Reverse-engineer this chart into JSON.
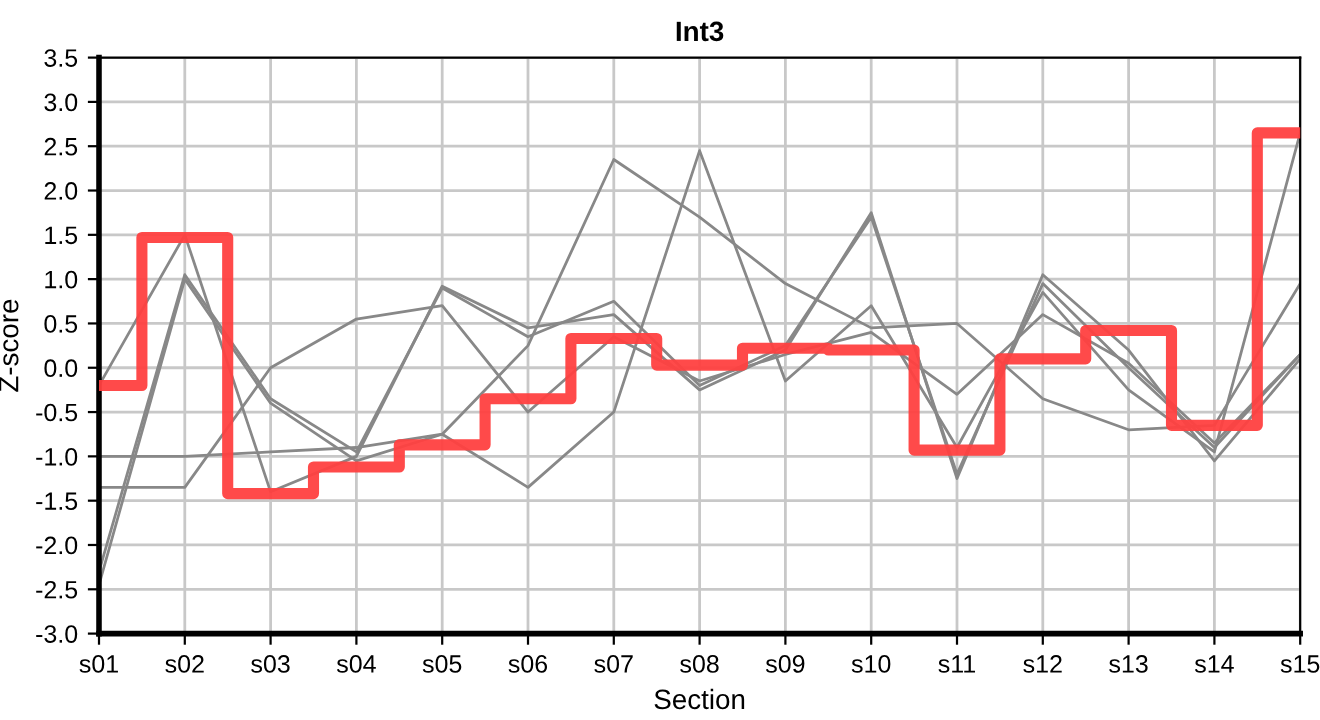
{
  "chart_data": {
    "type": "line",
    "title": "Int3",
    "xlabel": "Section",
    "ylabel": "Z-score",
    "categories": [
      "s01",
      "s02",
      "s03",
      "s04",
      "s05",
      "s06",
      "s07",
      "s08",
      "s09",
      "s10",
      "s11",
      "s12",
      "s13",
      "s14",
      "s15"
    ],
    "series": [
      {
        "color": "#888888",
        "values": [
          -0.2,
          1.5,
          -1.4,
          -1.0,
          0.92,
          0.45,
          0.6,
          -0.25,
          0.2,
          1.75,
          -1.25,
          1.05,
          0.2,
          -1.05,
          0.1
        ]
      },
      {
        "color": "#888888",
        "values": [
          -2.3,
          1.05,
          -0.35,
          -0.95,
          0.9,
          0.35,
          0.75,
          -0.2,
          0.25,
          1.7,
          -1.2,
          0.95,
          0.0,
          -0.9,
          0.15
        ]
      },
      {
        "color": "#888888",
        "values": [
          -2.45,
          1.0,
          -0.4,
          -1.05,
          -0.75,
          -1.35,
          -0.5,
          2.45,
          -0.15,
          0.7,
          -0.9,
          0.85,
          -0.25,
          -0.95,
          2.65
        ]
      },
      {
        "color": "#888888",
        "values": [
          -1.0,
          -1.0,
          -0.95,
          -0.9,
          -0.75,
          0.25,
          2.35,
          1.7,
          0.95,
          0.45,
          0.5,
          -0.35,
          -0.7,
          -0.65,
          0.95
        ]
      },
      {
        "color": "#888888",
        "values": [
          -1.35,
          -1.35,
          0.0,
          0.55,
          0.7,
          -0.5,
          0.35,
          -0.15,
          0.15,
          0.4,
          -0.3,
          0.6,
          0.05,
          -0.85,
          0.15
        ]
      },
      {
        "type": "step",
        "color": "#ff4040",
        "values": [
          -0.2,
          1.47,
          -1.42,
          -1.12,
          -0.87,
          -0.35,
          0.33,
          0.03,
          0.22,
          0.2,
          -0.93,
          0.1,
          0.42,
          -0.65,
          2.65
        ]
      }
    ],
    "ylim": [
      -3.0,
      3.5
    ],
    "yticks": [
      {
        "value": -3.0,
        "label": "-3.0"
      },
      {
        "value": -2.5,
        "label": "-2.5"
      },
      {
        "value": -2.0,
        "label": "-2.0"
      },
      {
        "value": -1.5,
        "label": "-1.5"
      },
      {
        "value": -1.0,
        "label": "-1.0"
      },
      {
        "value": -0.5,
        "label": "-0.5"
      },
      {
        "value": 0.0,
        "label": "0.0"
      },
      {
        "value": 0.5,
        "label": "0.5"
      },
      {
        "value": 1.0,
        "label": "1.0"
      },
      {
        "value": 1.5,
        "label": "1.5"
      },
      {
        "value": 2.0,
        "label": "2.0"
      },
      {
        "value": 2.5,
        "label": "2.5"
      },
      {
        "value": 3.0,
        "label": "3.0"
      },
      {
        "value": 3.5,
        "label": "3.5"
      }
    ],
    "grid": true
  }
}
